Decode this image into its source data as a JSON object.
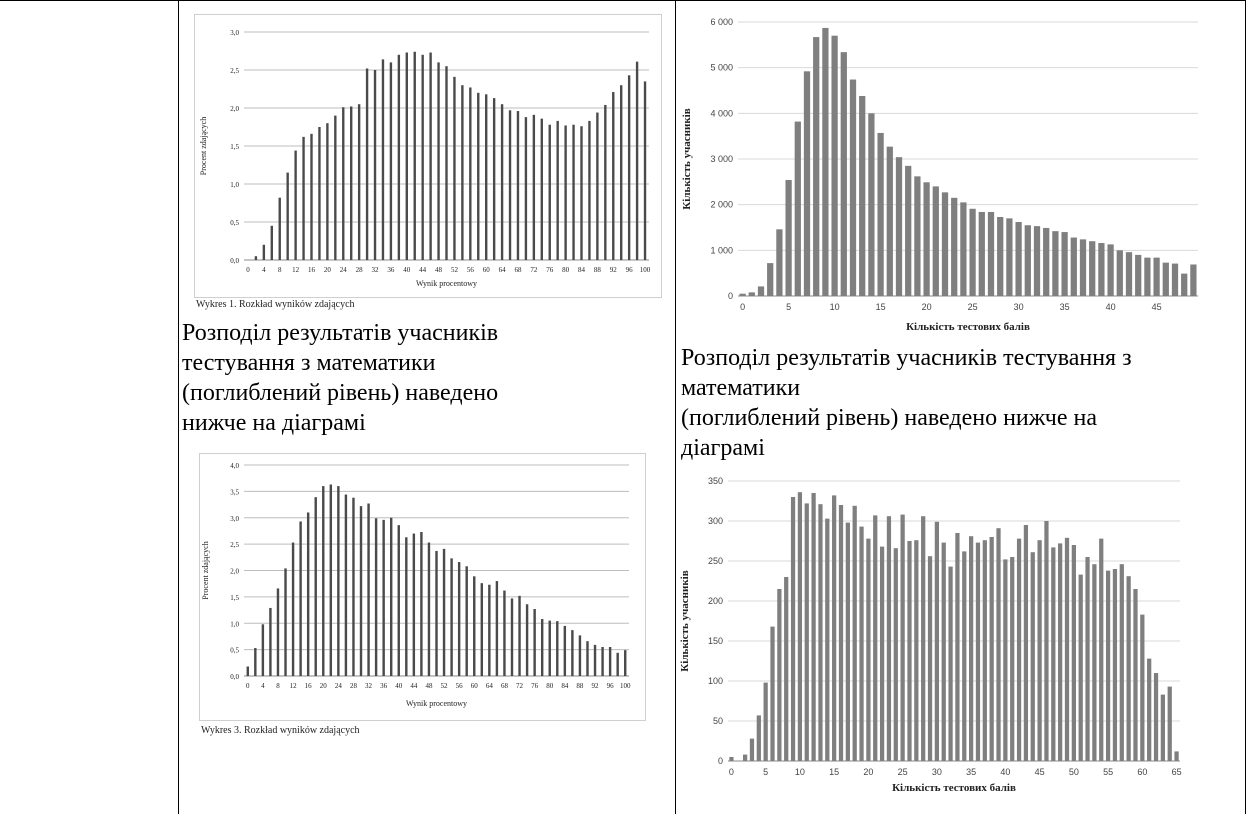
{
  "captions": {
    "wykres1": "Wykres 1. Rozkład wyników zdających",
    "wykres3": "Wykres 3. Rozkład wyników zdających"
  },
  "paragraphs": {
    "left": [
      "Розподіл результатів учасників",
      "тестування з математики",
      "(поглиблений рівень) наведено",
      "нижче на діаграмі"
    ],
    "right": [
      "Розподіл результатів учасників тестування з",
      "математики",
      "(поглиблений рівень) наведено нижче на",
      "діаграмі"
    ]
  },
  "chart_data": [
    {
      "id": "pl1",
      "type": "bar",
      "xlabel": "Wynik procentowy",
      "ylabel": "Procent zdających",
      "ylim": [
        0,
        3.0
      ],
      "yticks": [
        "0,0",
        "0,5",
        "1,0",
        "1,5",
        "2,0",
        "2,5",
        "3,0"
      ],
      "x_tick_labels": [
        "0",
        "4",
        "8",
        "12",
        "16",
        "20",
        "24",
        "28",
        "32",
        "36",
        "40",
        "44",
        "48",
        "52",
        "56",
        "60",
        "64",
        "68",
        "72",
        "76",
        "80",
        "84",
        "88",
        "92",
        "96",
        "100"
      ],
      "grid": true,
      "values": [
        0.0,
        0.05,
        0.2,
        0.45,
        0.82,
        1.15,
        1.44,
        1.62,
        1.66,
        1.75,
        1.8,
        1.9,
        2.01,
        2.02,
        2.05,
        2.52,
        2.5,
        2.64,
        2.6,
        2.7,
        2.73,
        2.74,
        2.7,
        2.73,
        2.6,
        2.55,
        2.41,
        2.3,
        2.27,
        2.2,
        2.18,
        2.13,
        2.05,
        1.97,
        1.96,
        1.88,
        1.91,
        1.86,
        1.78,
        1.83,
        1.77,
        1.78,
        1.76,
        1.83,
        1.94,
        2.04,
        2.21,
        2.3,
        2.43,
        2.61,
        2.35
      ]
    },
    {
      "id": "ua1",
      "type": "bar",
      "xlabel": "Кількість тестових балів",
      "ylabel": "Кількість учасників",
      "ylim": [
        0,
        6000
      ],
      "yticks": [
        "0",
        "1 000",
        "2 000",
        "3 000",
        "4 000",
        "5 000",
        "6 000"
      ],
      "x_tick_labels": [
        "0",
        "5",
        "10",
        "15",
        "20",
        "25",
        "30",
        "35",
        "40",
        "45"
      ],
      "grid": true,
      "values": [
        50,
        80,
        210,
        720,
        1460,
        2540,
        3820,
        4920,
        5670,
        5870,
        5700,
        5340,
        4740,
        4380,
        4000,
        3570,
        3270,
        3040,
        2850,
        2620,
        2490,
        2400,
        2270,
        2150,
        2050,
        1910,
        1840,
        1840,
        1730,
        1700,
        1620,
        1550,
        1530,
        1490,
        1420,
        1400,
        1280,
        1240,
        1200,
        1160,
        1130,
        1000,
        960,
        900,
        840,
        840,
        730,
        710,
        490,
        690
      ]
    },
    {
      "id": "pl3",
      "type": "bar",
      "xlabel": "Wynik procentowy",
      "ylabel": "Procent zdających",
      "ylim": [
        0,
        4.0
      ],
      "yticks": [
        "0,0",
        "0,5",
        "1,0",
        "1,5",
        "2,0",
        "2,5",
        "3,0",
        "3,5",
        "4,0"
      ],
      "x_tick_labels": [
        "0",
        "4",
        "8",
        "12",
        "16",
        "20",
        "24",
        "28",
        "32",
        "36",
        "40",
        "44",
        "48",
        "52",
        "56",
        "60",
        "64",
        "68",
        "72",
        "76",
        "80",
        "84",
        "88",
        "92",
        "96",
        "100"
      ],
      "grid": true,
      "values": [
        0.18,
        0.53,
        0.98,
        1.29,
        1.66,
        2.04,
        2.53,
        2.93,
        3.1,
        3.39,
        3.6,
        3.63,
        3.6,
        3.44,
        3.38,
        3.22,
        3.27,
        2.99,
        2.96,
        3.0,
        2.86,
        2.63,
        2.7,
        2.73,
        2.53,
        2.37,
        2.41,
        2.23,
        2.16,
        2.08,
        1.89,
        1.76,
        1.73,
        1.8,
        1.62,
        1.47,
        1.52,
        1.36,
        1.27,
        1.08,
        1.05,
        1.04,
        0.95,
        0.87,
        0.77,
        0.66,
        0.59,
        0.55,
        0.55,
        0.44,
        0.49
      ]
    },
    {
      "id": "ua2",
      "type": "bar",
      "xlabel": "Кількість тестових балів",
      "ylabel": "Кількість учасників",
      "ylim": [
        0,
        350
      ],
      "yticks": [
        "0",
        "50",
        "100",
        "150",
        "200",
        "250",
        "300",
        "350"
      ],
      "x_tick_labels": [
        "0",
        "5",
        "10",
        "15",
        "20",
        "25",
        "30",
        "35",
        "40",
        "45",
        "50",
        "55",
        "60",
        "65"
      ],
      "grid": true,
      "values": [
        5,
        0,
        8,
        28,
        57,
        98,
        168,
        215,
        230,
        330,
        336,
        322,
        335,
        321,
        303,
        332,
        320,
        298,
        319,
        293,
        278,
        307,
        268,
        306,
        266,
        308,
        275,
        276,
        306,
        256,
        299,
        273,
        243,
        285,
        262,
        281,
        273,
        276,
        280,
        291,
        252,
        255,
        278,
        295,
        261,
        276,
        300,
        267,
        272,
        279,
        270,
        233,
        255,
        246,
        278,
        238,
        240,
        246,
        231,
        215,
        183,
        128,
        110,
        83,
        93,
        12
      ]
    }
  ]
}
